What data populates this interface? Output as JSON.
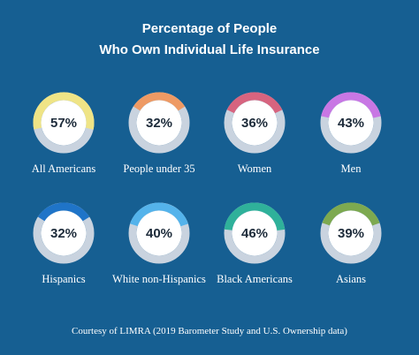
{
  "title_line1": "Percentage of People",
  "title_line2": "Who Own Individual Life Insurance",
  "footer": "Courtesy of LIMRA (2019 Barometer Study and U.S. Ownership data)",
  "colors": {
    "background": "#165f92",
    "track": "#c9d3df",
    "center": "#ffffff",
    "text_dark": "#1d2b3a"
  },
  "chart_data": {
    "type": "donut",
    "title": "Percentage of People Who Own Individual Life Insurance",
    "unit": "%",
    "categories": [
      "All Americans",
      "People under 35",
      "Women",
      "Men",
      "Hispanics",
      "White non-Hispanics",
      "Black Americans",
      "Asians"
    ],
    "values": [
      57,
      32,
      36,
      43,
      32,
      40,
      46,
      39
    ],
    "labels": [
      "57%",
      "32%",
      "36%",
      "43%",
      "32%",
      "40%",
      "46%",
      "39%"
    ],
    "colors": [
      "#efe486",
      "#ee9a64",
      "#d7647f",
      "#c877e4",
      "#1f74c8",
      "#54b3eb",
      "#2fb19a",
      "#7da950"
    ]
  }
}
